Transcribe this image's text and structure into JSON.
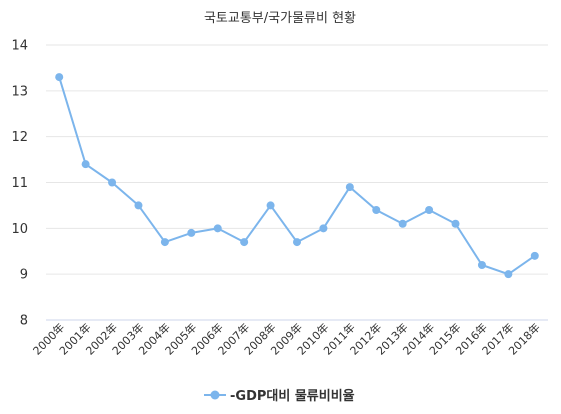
{
  "chart_data": {
    "type": "line",
    "title": "국토교통부/국가물류비 현황",
    "categories": [
      "2000年",
      "2001年",
      "2002年",
      "2003年",
      "2004年",
      "2005年",
      "2006年",
      "2007年",
      "2008年",
      "2009年",
      "2010年",
      "2011年",
      "2012年",
      "2013年",
      "2014年",
      "2015年",
      "2016年",
      "2017年",
      "2018年"
    ],
    "series": [
      {
        "name": "-GDP대비 물류비비율",
        "values": [
          13.3,
          11.4,
          11.0,
          10.5,
          9.7,
          9.9,
          10.0,
          9.7,
          10.5,
          9.7,
          10.0,
          10.9,
          10.4,
          10.1,
          10.4,
          10.1,
          9.2,
          9.0,
          9.4
        ]
      }
    ],
    "ylim": [
      8,
      14
    ],
    "yticks": [
      "8",
      "9",
      "10",
      "11",
      "12",
      "13",
      "14"
    ],
    "grid": true,
    "legend": "bottom-center",
    "colors": {
      "series": "#7cb5ec",
      "grid": "#e6e6e6",
      "text": "#333333"
    }
  }
}
